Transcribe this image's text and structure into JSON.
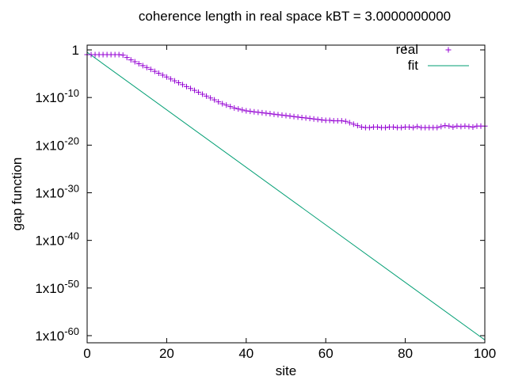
{
  "chart_data": {
    "type": "scatter",
    "title": "coherence length in real space kBT = 3.0000000000",
    "xlabel": "site",
    "ylabel": "gap function",
    "xlim": [
      0,
      100
    ],
    "ylim_log10": [
      -61.5,
      1
    ],
    "y_scale": "log",
    "grid": false,
    "legend_position": "top-right",
    "x_ticks": [
      {
        "value": 0,
        "label": "0"
      },
      {
        "value": 20,
        "label": "20"
      },
      {
        "value": 40,
        "label": "40"
      },
      {
        "value": 60,
        "label": "60"
      },
      {
        "value": 80,
        "label": "80"
      },
      {
        "value": 100,
        "label": "100"
      }
    ],
    "y_ticks": [
      {
        "exp": 0,
        "base": "1",
        "sup": ""
      },
      {
        "exp": -10,
        "base": "1x10",
        "sup": "-10"
      },
      {
        "exp": -20,
        "base": "1x10",
        "sup": "-20"
      },
      {
        "exp": -30,
        "base": "1x10",
        "sup": "-30"
      },
      {
        "exp": -40,
        "base": "1x10",
        "sup": "-40"
      },
      {
        "exp": -50,
        "base": "1x10",
        "sup": "-50"
      },
      {
        "exp": -60,
        "base": "1x10",
        "sup": "-60"
      }
    ],
    "series": [
      {
        "name": "real",
        "style": "points",
        "marker": "+",
        "color": "#9400d3",
        "x": [
          0,
          1,
          2,
          3,
          4,
          5,
          6,
          7,
          8,
          9,
          10,
          11,
          12,
          13,
          14,
          15,
          16,
          17,
          18,
          19,
          20,
          21,
          22,
          23,
          24,
          25,
          26,
          27,
          28,
          29,
          30,
          31,
          32,
          33,
          34,
          35,
          36,
          37,
          38,
          39,
          40,
          41,
          42,
          43,
          44,
          45,
          46,
          47,
          48,
          49,
          50,
          51,
          52,
          53,
          54,
          55,
          56,
          57,
          58,
          59,
          60,
          61,
          62,
          63,
          64,
          65,
          66,
          67,
          68,
          69,
          70,
          71,
          72,
          73,
          74,
          75,
          76,
          77,
          78,
          79,
          80,
          81,
          82,
          83,
          84,
          85,
          86,
          87,
          88,
          89,
          90,
          91,
          92,
          93,
          94,
          95,
          96,
          97,
          98,
          99,
          100
        ],
        "log10_y": [
          -1.0,
          -1.0,
          -1.0,
          -1.0,
          -1.0,
          -1.0,
          -1.0,
          -1.0,
          -1.0,
          -1.1,
          -1.6,
          -2.1,
          -2.5,
          -2.9,
          -3.3,
          -3.7,
          -4.1,
          -4.5,
          -4.9,
          -5.3,
          -5.7,
          -6.1,
          -6.5,
          -6.9,
          -7.3,
          -7.7,
          -8.1,
          -8.5,
          -8.9,
          -9.3,
          -9.7,
          -10.1,
          -10.5,
          -10.9,
          -11.3,
          -11.6,
          -11.9,
          -12.2,
          -12.4,
          -12.6,
          -12.8,
          -12.9,
          -13.0,
          -13.1,
          -13.2,
          -13.3,
          -13.4,
          -13.5,
          -13.6,
          -13.7,
          -13.8,
          -13.9,
          -14.0,
          -14.1,
          -14.2,
          -14.3,
          -14.4,
          -14.5,
          -14.6,
          -14.7,
          -14.8,
          -14.8,
          -14.9,
          -14.9,
          -14.9,
          -15.0,
          -15.3,
          -15.6,
          -15.9,
          -16.2,
          -16.3,
          -16.3,
          -16.2,
          -16.2,
          -16.3,
          -16.3,
          -16.2,
          -16.2,
          -16.3,
          -16.3,
          -16.2,
          -16.2,
          -16.3,
          -16.1,
          -16.3,
          -16.3,
          -16.3,
          -16.3,
          -16.3,
          -16.1,
          -15.9,
          -16.0,
          -16.2,
          -16.0,
          -16.1,
          -16.0,
          -16.1,
          -16.2,
          -16.0,
          -16.0,
          -16.0
        ]
      },
      {
        "name": "fit",
        "style": "line",
        "color": "#009e73",
        "x": [
          0,
          100
        ],
        "log10_y": [
          -0.5,
          -60.9
        ]
      }
    ]
  }
}
